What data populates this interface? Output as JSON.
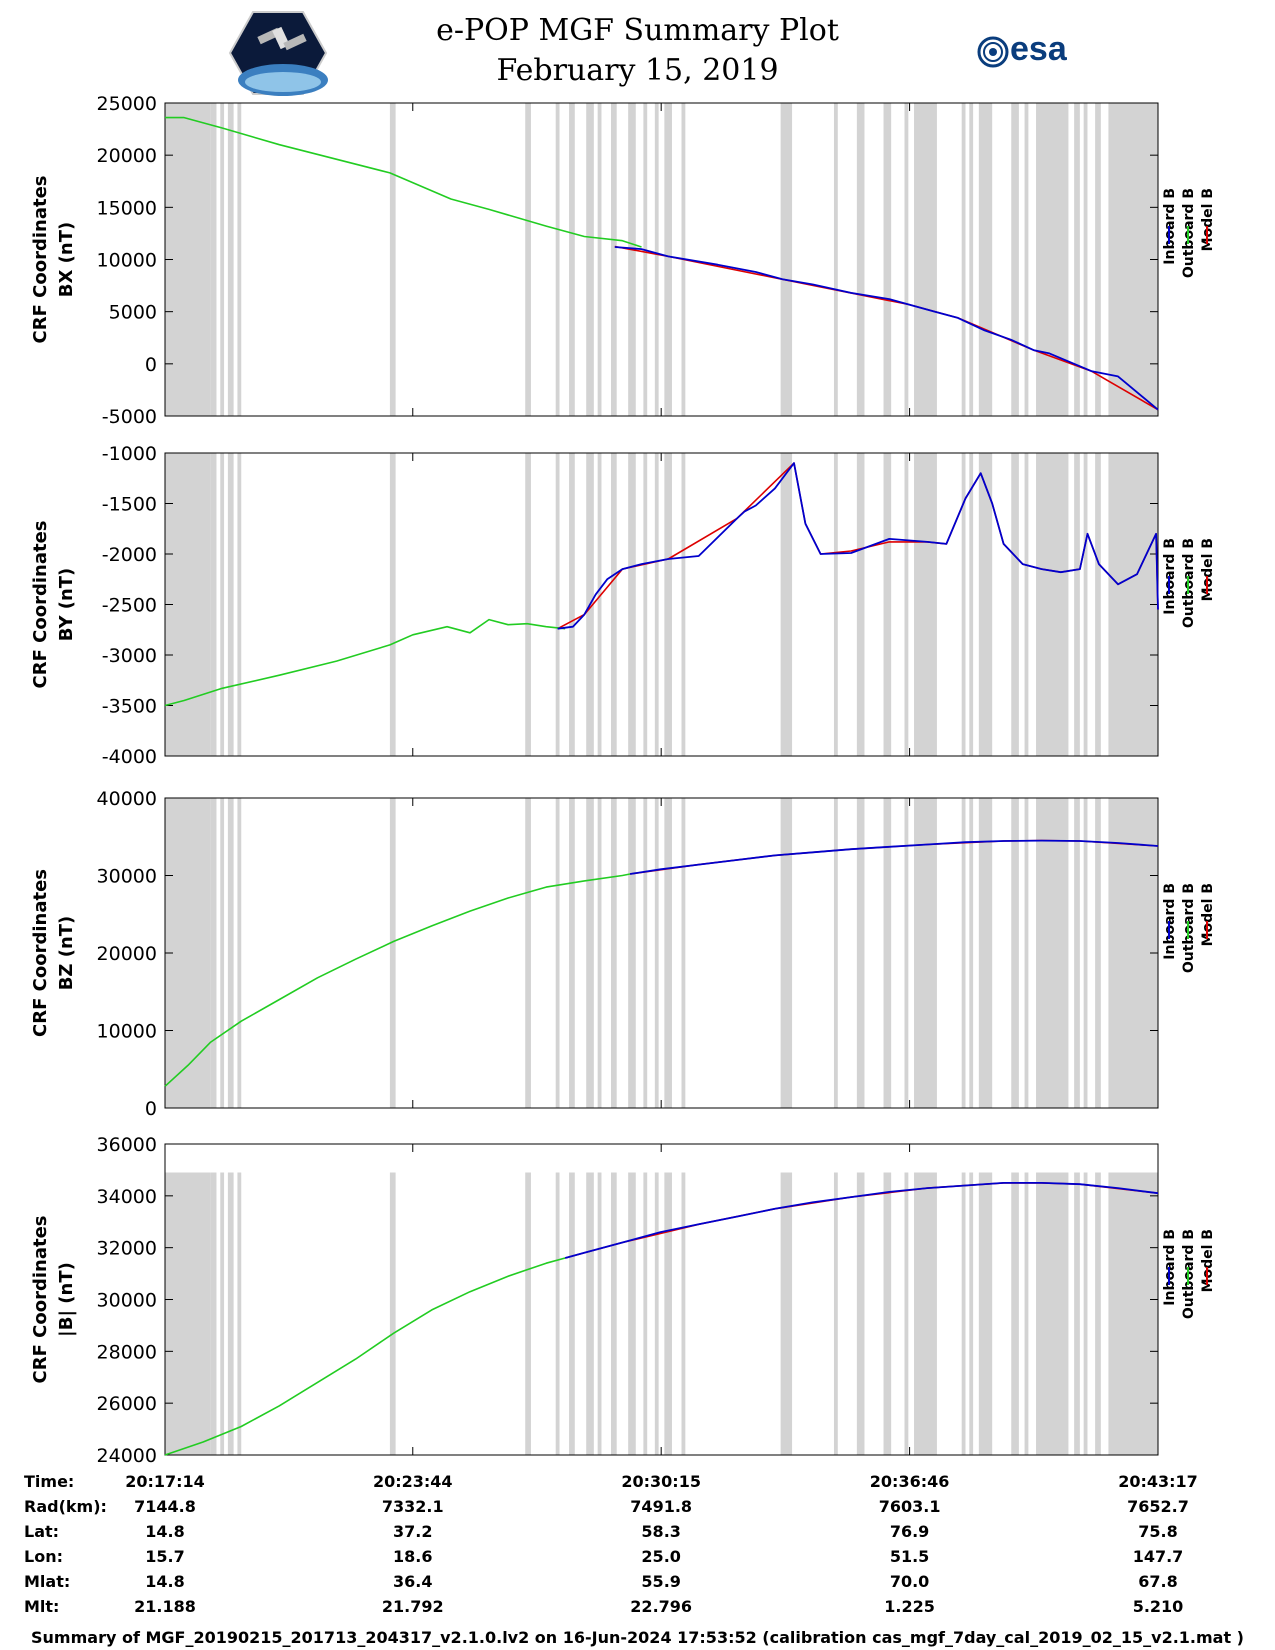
{
  "title": {
    "line1": "e-POP MGF Summary Plot",
    "line2": "February 15, 2019"
  },
  "logos": {
    "left": "cassiope-satellite-logo",
    "right": "esa",
    "right_color": "#0a3d7d"
  },
  "colors": {
    "inboard": "#0000cc",
    "outboard": "#22cc22",
    "model": "#dd0000",
    "shade": "#d3d3d3"
  },
  "chart_data": {
    "type": "line",
    "x_range": [
      0,
      26.05
    ],
    "x_unit": "minutes after 20:17:14",
    "shaded_intervals": [
      [
        0,
        1.2
      ],
      [
        1.2,
        1.35
      ],
      [
        1.45,
        1.55
      ],
      [
        1.65,
        1.8
      ],
      [
        1.9,
        2.0
      ],
      [
        5.9,
        6.05
      ],
      [
        9.45,
        9.6
      ],
      [
        10.25,
        10.35
      ],
      [
        10.6,
        10.75
      ],
      [
        11.05,
        11.25
      ],
      [
        11.35,
        11.45
      ],
      [
        11.7,
        11.85
      ],
      [
        12.15,
        12.35
      ],
      [
        12.55,
        12.65
      ],
      [
        12.85,
        12.95
      ],
      [
        13.1,
        13.3
      ],
      [
        13.55,
        13.65
      ],
      [
        16.15,
        16.45
      ],
      [
        17.55,
        17.65
      ],
      [
        18.15,
        18.35
      ],
      [
        18.85,
        19.05
      ],
      [
        19.4,
        19.5
      ],
      [
        19.65,
        20.25
      ],
      [
        20.9,
        21.0
      ],
      [
        21.1,
        21.2
      ],
      [
        21.35,
        21.7
      ],
      [
        22.2,
        22.4
      ],
      [
        22.55,
        22.65
      ],
      [
        22.85,
        23.7
      ],
      [
        23.85,
        24.0
      ],
      [
        24.1,
        24.2
      ],
      [
        24.4,
        24.55
      ],
      [
        24.75,
        26.05
      ]
    ],
    "legend": [
      "Inboard B",
      "Outboard B",
      "Model B"
    ],
    "panels": [
      {
        "id": "bx",
        "ylabel_line1": "CRF Coordinates",
        "ylabel_line2": "BX (nT)",
        "ylim": [
          -5000,
          25000
        ],
        "yticks": [
          -5000,
          0,
          5000,
          10000,
          15000,
          20000,
          25000
        ],
        "ytick_labels": [
          "-5000",
          "0",
          "5000",
          "10000",
          "15000",
          "20000",
          "25000"
        ],
        "outboard": {
          "x": [
            0,
            0.5,
            1.5,
            3,
            5.9,
            7.5,
            8.5,
            10,
            11,
            12,
            12.5
          ],
          "y": [
            23600,
            23600,
            22600,
            21000,
            18300,
            15800,
            14800,
            13200,
            12200,
            11800,
            11200
          ]
        },
        "inboard": {
          "x": [
            11.8,
            12.5,
            13.2,
            14.5,
            15.5,
            16.2,
            17,
            18,
            19,
            19.5,
            20.2,
            20.8,
            21.5,
            22.2,
            22.8,
            23.2,
            24.3,
            25,
            26.05
          ],
          "y": [
            11200,
            11000,
            10300,
            9500,
            8800,
            8100,
            7600,
            6800,
            6200,
            5700,
            5000,
            4400,
            3200,
            2300,
            1300,
            1000,
            -700,
            -1200,
            -4400
          ]
        },
        "model": {
          "x": [
            11.8,
            13.2,
            16.2,
            19.5,
            20.8,
            22.8,
            24.3,
            26.05
          ],
          "y": [
            11250,
            10300,
            8100,
            5700,
            4400,
            1300,
            -700,
            -4400
          ]
        }
      },
      {
        "id": "by",
        "ylabel_line1": "CRF Coordinates",
        "ylabel_line2": "BY (nT)",
        "ylim": [
          -4000,
          -1000
        ],
        "yticks": [
          -4000,
          -3500,
          -3000,
          -2500,
          -2000,
          -1500,
          -1000
        ],
        "ytick_labels": [
          "-4000",
          "-3500",
          "-3000",
          "-2500",
          "-2000",
          "-1500",
          "-1000"
        ],
        "outboard": {
          "x": [
            0,
            0.5,
            1.5,
            3,
            4.5,
            5.9,
            6.5,
            7.4,
            8,
            8.5,
            9,
            9.5,
            10,
            10.5
          ],
          "y": [
            -3500,
            -3450,
            -3330,
            -3200,
            -3060,
            -2900,
            -2800,
            -2720,
            -2780,
            -2650,
            -2700,
            -2690,
            -2720,
            -2740
          ]
        },
        "inboard": {
          "x": [
            10.3,
            10.7,
            11,
            11.3,
            11.6,
            12,
            12.5,
            13.2,
            14,
            15,
            15.2,
            15.5,
            16,
            16.5,
            16.8,
            17.2,
            18,
            19,
            20,
            20.5,
            21,
            21.4,
            21.7,
            22,
            22.5,
            23,
            23.5,
            24,
            24.2,
            24.5,
            25,
            25.5,
            26,
            26.05
          ],
          "y": [
            -2740,
            -2720,
            -2600,
            -2400,
            -2250,
            -2150,
            -2100,
            -2050,
            -2020,
            -1650,
            -1580,
            -1520,
            -1350,
            -1100,
            -1700,
            -2000,
            -1990,
            -1850,
            -1880,
            -1900,
            -1450,
            -1200,
            -1500,
            -1900,
            -2100,
            -2150,
            -2180,
            -2150,
            -1800,
            -2100,
            -2300,
            -2200,
            -1800,
            -2550
          ]
        },
        "model": {
          "x": [
            10.3,
            11,
            12,
            13.2,
            15,
            16.5,
            16.8,
            17.2,
            18,
            19,
            20,
            20.5,
            21,
            21.4,
            21.7,
            22,
            22.5,
            23,
            23.5,
            24,
            24.2,
            24.5,
            25,
            25.5,
            26,
            26.05
          ],
          "y": [
            -2740,
            -2600,
            -2150,
            -2050,
            -1650,
            -1100,
            -1700,
            -2000,
            -1970,
            -1880,
            -1880,
            -1900,
            -1450,
            -1200,
            -1500,
            -1900,
            -2100,
            -2150,
            -2180,
            -2150,
            -1800,
            -2100,
            -2300,
            -2200,
            -1800,
            -2550
          ]
        }
      },
      {
        "id": "bz",
        "ylabel_line1": "CRF Coordinates",
        "ylabel_line2": "BZ (nT)",
        "ylim": [
          0,
          40000
        ],
        "yticks": [
          0,
          10000,
          20000,
          30000,
          40000
        ],
        "ytick_labels": [
          "0",
          "10000",
          "20000",
          "30000",
          "40000"
        ],
        "outboard": {
          "x": [
            0,
            0.6,
            1.2,
            2,
            3,
            4,
            5,
            6,
            7,
            8,
            9,
            10,
            11,
            12,
            12.2
          ],
          "y": [
            2800,
            5500,
            8500,
            11200,
            14000,
            16800,
            19200,
            21500,
            23500,
            25400,
            27100,
            28500,
            29300,
            30000,
            30200
          ]
        },
        "inboard": {
          "x": [
            12.2,
            13,
            14,
            15,
            16,
            17,
            18,
            19,
            20,
            21,
            22,
            23,
            24,
            25,
            26.05
          ],
          "y": [
            30200,
            30800,
            31400,
            32000,
            32600,
            33000,
            33400,
            33700,
            34000,
            34300,
            34450,
            34500,
            34450,
            34200,
            33800
          ]
        },
        "model": {
          "x": [
            12.2,
            14,
            16,
            18,
            20,
            22,
            23,
            24,
            26.05
          ],
          "y": [
            30200,
            31400,
            32600,
            33400,
            34000,
            34450,
            34500,
            34450,
            33800
          ]
        }
      },
      {
        "id": "bmag",
        "ylabel_line1": "CRF Coordinates",
        "ylabel_line2": "|B| (nT)",
        "ylim": [
          24000,
          36000
        ],
        "shade_top": 34900,
        "yticks": [
          24000,
          26000,
          28000,
          30000,
          32000,
          34000,
          36000
        ],
        "ytick_labels": [
          "24000",
          "26000",
          "28000",
          "30000",
          "32000",
          "34000",
          "36000"
        ],
        "outboard": {
          "x": [
            0,
            1,
            2,
            3,
            4,
            5,
            6,
            7,
            8,
            9,
            10,
            10.5
          ],
          "y": [
            24000,
            24500,
            25100,
            25900,
            26800,
            27700,
            28700,
            29600,
            30300,
            30900,
            31400,
            31600
          ]
        },
        "inboard": {
          "x": [
            10.5,
            11,
            12,
            13,
            14,
            15,
            16,
            17,
            18,
            19,
            20,
            21,
            22,
            23,
            24,
            25,
            26.05
          ],
          "y": [
            31600,
            31800,
            32200,
            32600,
            32900,
            33200,
            33500,
            33750,
            33950,
            34150,
            34300,
            34400,
            34500,
            34500,
            34450,
            34300,
            34100
          ]
        },
        "model": {
          "x": [
            10.5,
            12,
            14,
            16,
            18,
            20,
            22,
            23,
            24,
            26.05
          ],
          "y": [
            31600,
            32200,
            32900,
            33500,
            33950,
            34300,
            34500,
            34500,
            34450,
            34100
          ]
        }
      }
    ]
  },
  "info_table": {
    "row_labels": [
      "Time:",
      "Rad(km):",
      "Lat:",
      "Lon:",
      "Mlat:",
      "Mlt:"
    ],
    "columns": [
      [
        "20:17:14",
        "7144.8",
        "14.8",
        "15.7",
        "14.8",
        "21.188"
      ],
      [
        "20:23:44",
        "7332.1",
        "37.2",
        "18.6",
        "36.4",
        "21.792"
      ],
      [
        "20:30:15",
        "7491.8",
        "58.3",
        "25.0",
        "55.9",
        "22.796"
      ],
      [
        "20:36:46",
        "7603.1",
        "76.9",
        "51.5",
        "70.0",
        "1.225"
      ],
      [
        "20:43:17",
        "7652.7",
        "75.8",
        "147.7",
        "67.8",
        "5.210"
      ]
    ],
    "tick_positions": [
      0,
      6.5,
      13.0167,
      19.5333,
      26.05
    ]
  },
  "footer": "Summary of MGF_20190215_201713_204317_v2.1.0.lv2 on 16-Jun-2024 17:53:52 (calibration cas_mgf_7day_cal_2019_02_15_v2.1.mat )"
}
